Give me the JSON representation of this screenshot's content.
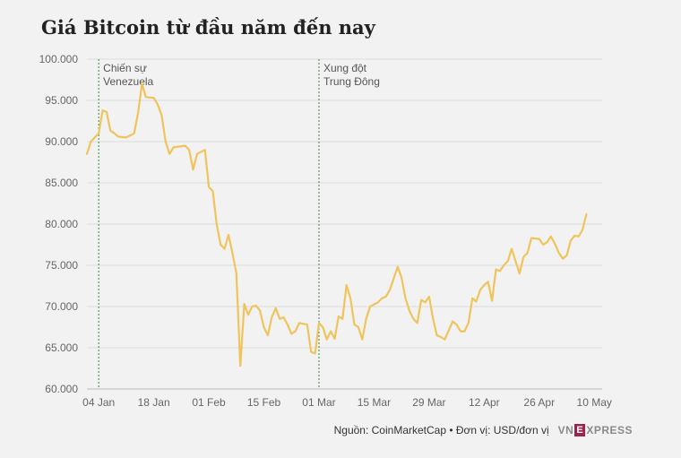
{
  "title": "Giá Bitcoin từ đầu năm đến nay",
  "footer": {
    "source": "Nguồn: CoinMarketCap • Đơn vị: USD/đơn vị",
    "logo_pre": "VN",
    "logo_box": "E",
    "logo_post": "XPRESS"
  },
  "colors": {
    "line": "#f0c45c",
    "annotation": "#2e8b3a",
    "logo_box": "#9f224e"
  },
  "chart_data": {
    "type": "line",
    "title": "Giá Bitcoin từ đầu năm đến nay",
    "xlabel": "",
    "ylabel": "",
    "ylim": [
      60000,
      100000
    ],
    "y_ticks": [
      {
        "value": 60000,
        "label": "60.000"
      },
      {
        "value": 65000,
        "label": "65.000"
      },
      {
        "value": 70000,
        "label": "70.000"
      },
      {
        "value": 75000,
        "label": "75.000"
      },
      {
        "value": 80000,
        "label": "80.000"
      },
      {
        "value": 85000,
        "label": "85.000"
      },
      {
        "value": 90000,
        "label": "90.000"
      },
      {
        "value": 95000,
        "label": "95.000"
      },
      {
        "value": 100000,
        "label": "100.000"
      }
    ],
    "x_ticks": [
      {
        "date": "2026-01-04",
        "label": "04 Jan"
      },
      {
        "date": "2026-01-18",
        "label": "18 Jan"
      },
      {
        "date": "2026-02-01",
        "label": "01 Feb"
      },
      {
        "date": "2026-02-15",
        "label": "15 Feb"
      },
      {
        "date": "2026-03-01",
        "label": "01 Mar"
      },
      {
        "date": "2026-03-15",
        "label": "15 Mar"
      },
      {
        "date": "2026-03-29",
        "label": "29 Mar"
      },
      {
        "date": "2026-04-12",
        "label": "12 Apr"
      },
      {
        "date": "2026-04-26",
        "label": "26 Apr"
      },
      {
        "date": "2026-05-10",
        "label": "10 May"
      }
    ],
    "grid": "horizontal",
    "annotations": [
      {
        "date": "2026-01-04",
        "label_lines": [
          "Chiến sự",
          "Venezuela"
        ]
      },
      {
        "date": "2026-03-01",
        "label_lines": [
          "Xung đột",
          "Trung Đông"
        ]
      }
    ],
    "series": [
      {
        "points": [
          [
            "2026-01-01",
            88500
          ],
          [
            "2026-01-02",
            90000
          ],
          [
            "2026-01-04",
            91000
          ],
          [
            "2026-01-05",
            93800
          ],
          [
            "2026-01-06",
            93600
          ],
          [
            "2026-01-07",
            91300
          ],
          [
            "2026-01-08",
            91000
          ],
          [
            "2026-01-09",
            90600
          ],
          [
            "2026-01-11",
            90500
          ],
          [
            "2026-01-13",
            91000
          ],
          [
            "2026-01-14",
            93500
          ],
          [
            "2026-01-15",
            97000
          ],
          [
            "2026-01-16",
            95400
          ],
          [
            "2026-01-18",
            95300
          ],
          [
            "2026-01-19",
            94500
          ],
          [
            "2026-01-20",
            93200
          ],
          [
            "2026-01-21",
            90000
          ],
          [
            "2026-01-22",
            88500
          ],
          [
            "2026-01-23",
            89300
          ],
          [
            "2026-01-26",
            89500
          ],
          [
            "2026-01-27",
            89000
          ],
          [
            "2026-01-28",
            86600
          ],
          [
            "2026-01-29",
            88500
          ],
          [
            "2026-01-31",
            89000
          ],
          [
            "2026-02-01",
            84500
          ],
          [
            "2026-02-02",
            84000
          ],
          [
            "2026-02-03",
            80000
          ],
          [
            "2026-02-04",
            77500
          ],
          [
            "2026-02-05",
            77000
          ],
          [
            "2026-02-06",
            78700
          ],
          [
            "2026-02-07",
            76500
          ],
          [
            "2026-02-08",
            74000
          ],
          [
            "2026-02-09",
            62800
          ],
          [
            "2026-02-10",
            70300
          ],
          [
            "2026-02-11",
            69000
          ],
          [
            "2026-02-12",
            70000
          ],
          [
            "2026-02-13",
            70100
          ],
          [
            "2026-02-14",
            69500
          ],
          [
            "2026-02-15",
            67500
          ],
          [
            "2026-02-16",
            66500
          ],
          [
            "2026-02-17",
            68700
          ],
          [
            "2026-02-18",
            69800
          ],
          [
            "2026-02-19",
            68500
          ],
          [
            "2026-02-20",
            68700
          ],
          [
            "2026-02-21",
            67800
          ],
          [
            "2026-02-22",
            66700
          ],
          [
            "2026-02-23",
            67000
          ],
          [
            "2026-02-24",
            68000
          ],
          [
            "2026-02-25",
            67900
          ],
          [
            "2026-02-26",
            67800
          ],
          [
            "2026-02-27",
            64500
          ],
          [
            "2026-02-28",
            64300
          ],
          [
            "2026-03-01",
            68000
          ],
          [
            "2026-03-02",
            67500
          ],
          [
            "2026-03-03",
            66000
          ],
          [
            "2026-03-04",
            67000
          ],
          [
            "2026-03-05",
            66100
          ],
          [
            "2026-03-06",
            68800
          ],
          [
            "2026-03-07",
            68500
          ],
          [
            "2026-03-08",
            72600
          ],
          [
            "2026-03-09",
            71000
          ],
          [
            "2026-03-10",
            67800
          ],
          [
            "2026-03-11",
            67500
          ],
          [
            "2026-03-12",
            66000
          ],
          [
            "2026-03-13",
            68500
          ],
          [
            "2026-03-14",
            70000
          ],
          [
            "2026-03-16",
            70500
          ],
          [
            "2026-03-17",
            71000
          ],
          [
            "2026-03-18",
            71200
          ],
          [
            "2026-03-19",
            72000
          ],
          [
            "2026-03-21",
            74800
          ],
          [
            "2026-03-22",
            73500
          ],
          [
            "2026-03-23",
            71000
          ],
          [
            "2026-03-24",
            69500
          ],
          [
            "2026-03-25",
            68500
          ],
          [
            "2026-03-26",
            68000
          ],
          [
            "2026-03-27",
            70800
          ],
          [
            "2026-03-28",
            70500
          ],
          [
            "2026-03-29",
            71200
          ],
          [
            "2026-03-30",
            68500
          ],
          [
            "2026-03-31",
            66500
          ],
          [
            "2026-04-01",
            66300
          ],
          [
            "2026-04-02",
            66000
          ],
          [
            "2026-04-04",
            68200
          ],
          [
            "2026-04-05",
            67800
          ],
          [
            "2026-04-06",
            67000
          ],
          [
            "2026-04-07",
            67000
          ],
          [
            "2026-04-08",
            68000
          ],
          [
            "2026-04-09",
            71000
          ],
          [
            "2026-04-10",
            70600
          ],
          [
            "2026-04-11",
            72000
          ],
          [
            "2026-04-12",
            72600
          ],
          [
            "2026-04-13",
            73000
          ],
          [
            "2026-04-14",
            70700
          ],
          [
            "2026-04-15",
            74500
          ],
          [
            "2026-04-16",
            74300
          ],
          [
            "2026-04-17",
            75000
          ],
          [
            "2026-04-18",
            75500
          ],
          [
            "2026-04-19",
            77000
          ],
          [
            "2026-04-20",
            75500
          ],
          [
            "2026-04-21",
            74000
          ],
          [
            "2026-04-22",
            76000
          ],
          [
            "2026-04-23",
            76500
          ],
          [
            "2026-04-24",
            78300
          ],
          [
            "2026-04-26",
            78200
          ],
          [
            "2026-04-27",
            77500
          ],
          [
            "2026-04-28",
            77800
          ],
          [
            "2026-04-29",
            78500
          ],
          [
            "2026-04-30",
            77600
          ],
          [
            "2026-05-01",
            76500
          ],
          [
            "2026-05-02",
            75800
          ],
          [
            "2026-05-03",
            76200
          ],
          [
            "2026-05-04",
            78000
          ],
          [
            "2026-05-05",
            78600
          ],
          [
            "2026-05-06",
            78500
          ],
          [
            "2026-05-07",
            79300
          ],
          [
            "2026-05-08",
            81200
          ]
        ]
      }
    ]
  }
}
